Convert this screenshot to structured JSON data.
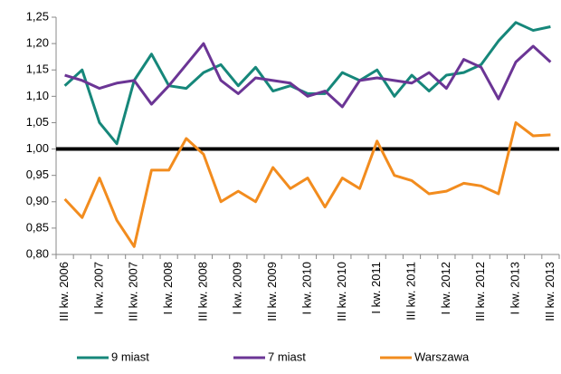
{
  "chart_data": {
    "type": "line",
    "categories": [
      "III kw. 2006",
      null,
      "I kw. 2007",
      null,
      "III kw. 2007",
      null,
      "I kw. 2008",
      null,
      "III kw. 2008",
      null,
      "I kw. 2009",
      null,
      "III kw. 2009",
      null,
      "I kw. 2010",
      null,
      "III kw. 2010",
      null,
      "I kw. 2011",
      null,
      "III kw. 2011",
      null,
      "I kw. 2012",
      null,
      "III kw. 2012",
      null,
      "I kw. 2013",
      null,
      "III kw. 2013"
    ],
    "series": [
      {
        "name": "9 miast",
        "color": "#16877a",
        "values": [
          1.12,
          1.15,
          1.05,
          1.01,
          1.13,
          1.18,
          1.12,
          1.115,
          1.145,
          1.16,
          1.12,
          1.155,
          1.11,
          1.12,
          1.105,
          1.105,
          1.145,
          1.13,
          1.15,
          1.1,
          1.14,
          1.11,
          1.14,
          1.145,
          1.16,
          1.205,
          1.24,
          1.225,
          1.232
        ]
      },
      {
        "name": "7 miast",
        "color": "#6b3595",
        "values": [
          1.14,
          1.13,
          1.115,
          1.125,
          1.13,
          1.085,
          1.12,
          1.16,
          1.2,
          1.13,
          1.105,
          1.135,
          1.13,
          1.125,
          1.1,
          1.11,
          1.08,
          1.13,
          1.135,
          1.13,
          1.125,
          1.145,
          1.115,
          1.17,
          1.155,
          1.095,
          1.165,
          1.195,
          1.165
        ]
      },
      {
        "name": "Warszawa",
        "color": "#f28c1e",
        "values": [
          0.905,
          0.87,
          0.945,
          0.865,
          0.815,
          0.96,
          0.96,
          1.02,
          0.99,
          0.9,
          0.92,
          0.9,
          0.965,
          0.925,
          0.945,
          0.89,
          0.945,
          0.925,
          1.015,
          0.95,
          0.94,
          0.915,
          0.92,
          0.935,
          0.93,
          0.915,
          1.05,
          1.025,
          1.027
        ]
      }
    ],
    "ylim": [
      0.8,
      1.25
    ],
    "yticks": [
      {
        "value": 0.8,
        "label": "0,80"
      },
      {
        "value": 0.85,
        "label": "0,85"
      },
      {
        "value": 0.9,
        "label": "0,90"
      },
      {
        "value": 0.95,
        "label": "0,95"
      },
      {
        "value": 1.0,
        "label": "1,00"
      },
      {
        "value": 1.05,
        "label": "1,05"
      },
      {
        "value": 1.1,
        "label": "1,10"
      },
      {
        "value": 1.15,
        "label": "1,15"
      },
      {
        "value": 1.2,
        "label": "1,20"
      },
      {
        "value": 1.25,
        "label": "1,25"
      }
    ],
    "reference_line": {
      "value": 1.0,
      "color": "#000000"
    },
    "grid": false,
    "legend": "bottom"
  }
}
